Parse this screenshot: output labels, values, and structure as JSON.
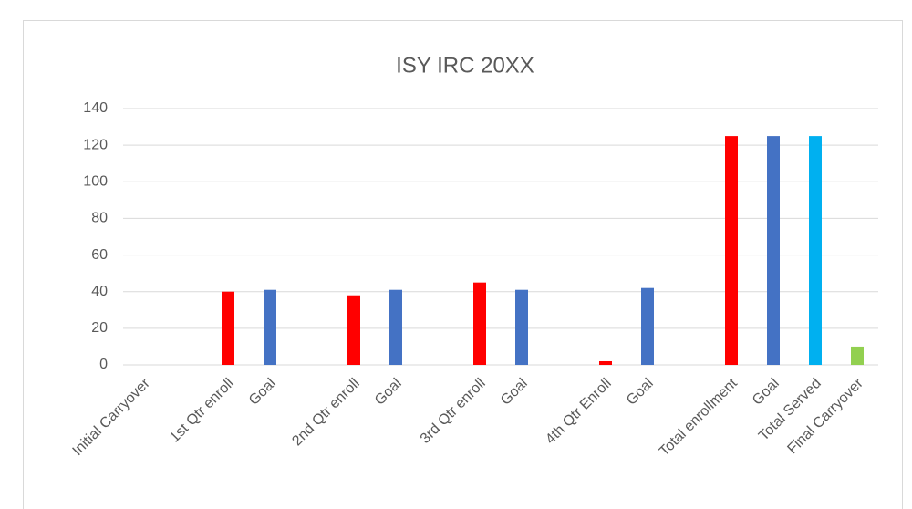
{
  "chart_data": {
    "type": "bar",
    "title": "ISY IRC 20XX",
    "categories": [
      "Initial Carryover",
      null,
      "1st Qtr enroll",
      "Goal",
      null,
      "2nd Qtr enroll",
      "Goal",
      null,
      "3rd Qtr enroll",
      "Goal",
      null,
      "4th Qtr Enroll",
      "Goal",
      null,
      "Total enrollment",
      "Goal",
      "Total Served",
      "Final Carryover"
    ],
    "values": [
      0,
      null,
      40,
      41,
      null,
      38,
      41,
      null,
      45,
      41,
      null,
      2,
      42,
      null,
      125,
      125,
      125,
      10
    ],
    "colors": [
      "#ff0000",
      null,
      "#ff0000",
      "#4472c4",
      null,
      "#ff0000",
      "#4472c4",
      null,
      "#ff0000",
      "#4472c4",
      null,
      "#ff0000",
      "#4472c4",
      null,
      "#ff0000",
      "#4472c4",
      "#00b0f0",
      "#92d050"
    ],
    "ylim": [
      0,
      140
    ],
    "yticks": [
      0,
      20,
      40,
      60,
      80,
      100,
      120,
      140
    ],
    "grid": true
  }
}
